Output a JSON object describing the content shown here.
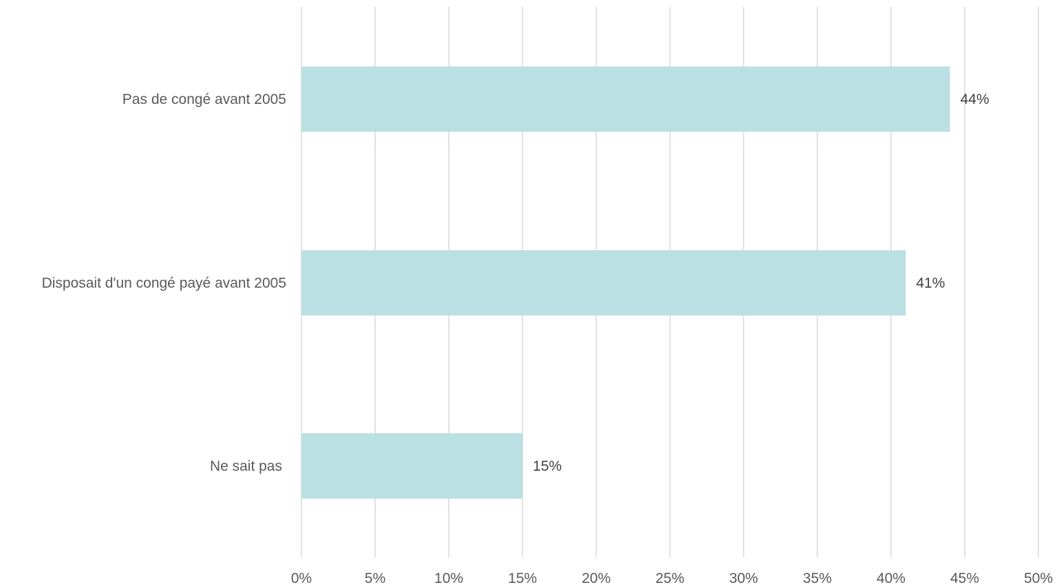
{
  "chart_data": {
    "type": "bar",
    "orientation": "horizontal",
    "categories": [
      "Pas de congé avant 2005",
      "Disposait d'un congé payé avant 2005",
      "Ne sait pas"
    ],
    "values": [
      44,
      41,
      15
    ],
    "value_labels": [
      "44%",
      "41%",
      "15%"
    ],
    "unit": "%",
    "xlim": [
      0,
      50
    ],
    "x_ticks": [
      0,
      5,
      10,
      15,
      20,
      25,
      30,
      35,
      40,
      45,
      50
    ],
    "x_tick_labels": [
      "0%",
      "5%",
      "10%",
      "15%",
      "20%",
      "25%",
      "30%",
      "35%",
      "40%",
      "45%",
      "50%"
    ],
    "grid": "vertical",
    "legend": "none",
    "bar_color": "#bbe0e3",
    "grid_color": "#d9d9d9",
    "title": "",
    "xlabel": "",
    "ylabel": ""
  }
}
